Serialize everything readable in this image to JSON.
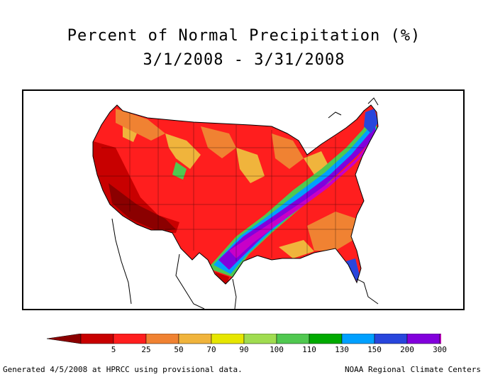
{
  "header": {
    "title": "Percent of Normal Precipitation (%)",
    "date_range": "3/1/2008 - 3/31/2008"
  },
  "legend": {
    "colors": [
      "#8b0000",
      "#c80000",
      "#ff1e1e",
      "#f08232",
      "#f0b43c",
      "#e6e600",
      "#a0dc50",
      "#50c850",
      "#00aa00",
      "#00a0ff",
      "#2846dc",
      "#8200dc",
      "#c800c8",
      "#ff32ff"
    ],
    "labels": [
      "5",
      "25",
      "50",
      "70",
      "90",
      "100",
      "110",
      "130",
      "150",
      "200",
      "300"
    ]
  },
  "footer": {
    "left": "Generated 4/5/2008 at HPRCC using provisional data.",
    "right": "NOAA Regional Climate Centers"
  }
}
